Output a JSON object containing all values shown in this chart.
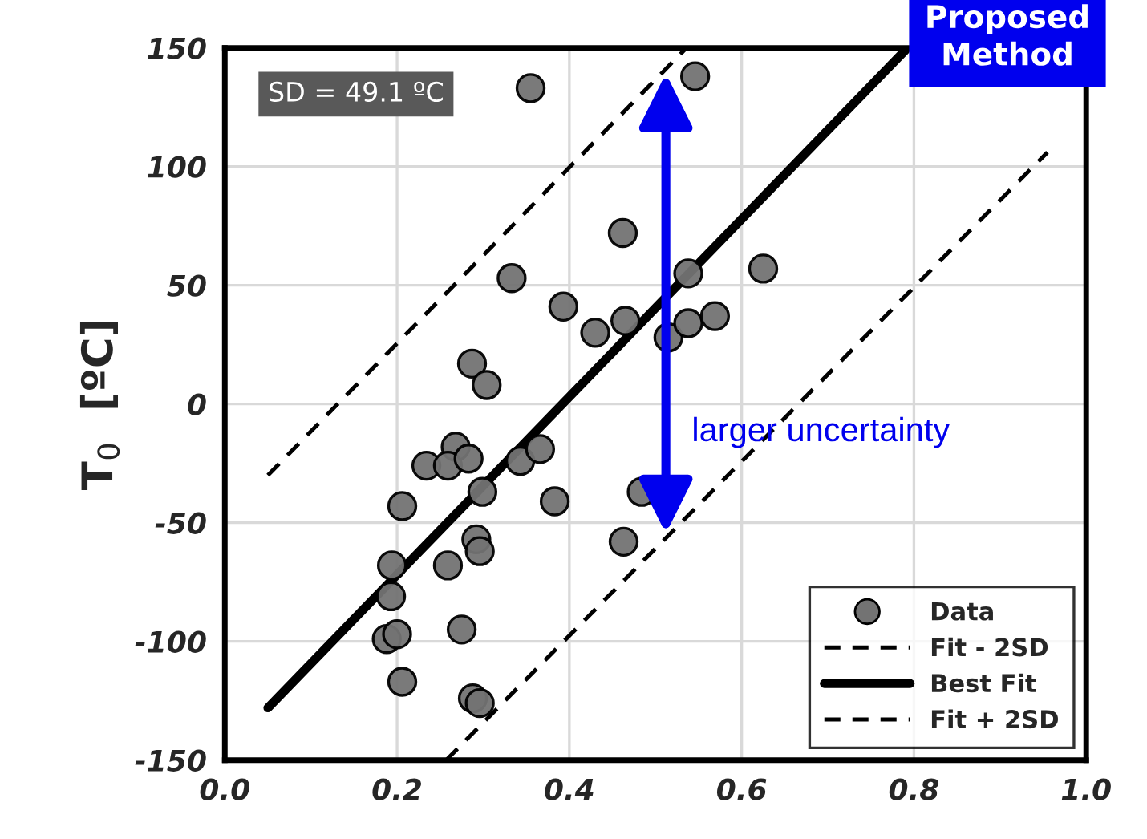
{
  "chart_data": {
    "type": "scatter",
    "ylabel": "T$_{0}$  [ºC]",
    "xlim": [
      0.0,
      1.0
    ],
    "xticks": [
      {
        "value": 0.0,
        "label": "0.0"
      },
      0.2,
      0.4,
      0.6,
      0.8,
      {
        "value": 1.0,
        "label": "1.0"
      }
    ],
    "ylim": [
      -150,
      150
    ],
    "yticks": [
      -150,
      -100,
      -50,
      0,
      50,
      100,
      150
    ],
    "grid": true,
    "legend": "bottom right",
    "series": [
      {
        "name": "Data",
        "marker": "circle",
        "color": "#737373",
        "x": [
          0.355,
          0.462,
          0.333,
          0.393,
          0.43,
          0.465,
          0.287,
          0.304,
          0.515,
          0.546,
          0.538,
          0.625,
          0.538,
          0.569,
          0.484,
          0.268,
          0.234,
          0.259,
          0.283,
          0.343,
          0.366,
          0.299,
          0.206,
          0.383,
          0.463,
          0.292,
          0.296,
          0.194,
          0.259,
          0.193,
          0.275,
          0.188,
          0.2,
          0.206,
          0.288,
          0.296
        ],
        "values": [
          133,
          72,
          53,
          41,
          30,
          35,
          17,
          8,
          28,
          138,
          55,
          57,
          34,
          37,
          -37,
          -18,
          -26,
          -26,
          -23,
          -24,
          -19,
          -37,
          -43,
          -41,
          -58,
          -57,
          -62,
          -68,
          -68,
          -81,
          -95,
          -99,
          -97,
          -117,
          -124,
          -126
        ]
      },
      {
        "name": "Fit - 2SD",
        "type": "line",
        "line_style": "dashed",
        "color": "#000000",
        "x": [
          0.257,
          0.955
        ],
        "values": [
          -150,
          106
        ]
      },
      {
        "name": "Best Fit",
        "type": "line",
        "line_style": "solid",
        "color": "#000000",
        "x": [
          0.05,
          0.79
        ],
        "values": [
          -128,
          149
        ]
      },
      {
        "name": "Fit + 2SD",
        "type": "line",
        "line_style": "dashed",
        "color": "#000000",
        "x": [
          0.05,
          0.536
        ],
        "values": [
          -30,
          150
        ]
      }
    ],
    "annotations": [
      "SD = 49.1 ºC",
      "Proposed Method",
      "larger uncertainty"
    ]
  }
}
